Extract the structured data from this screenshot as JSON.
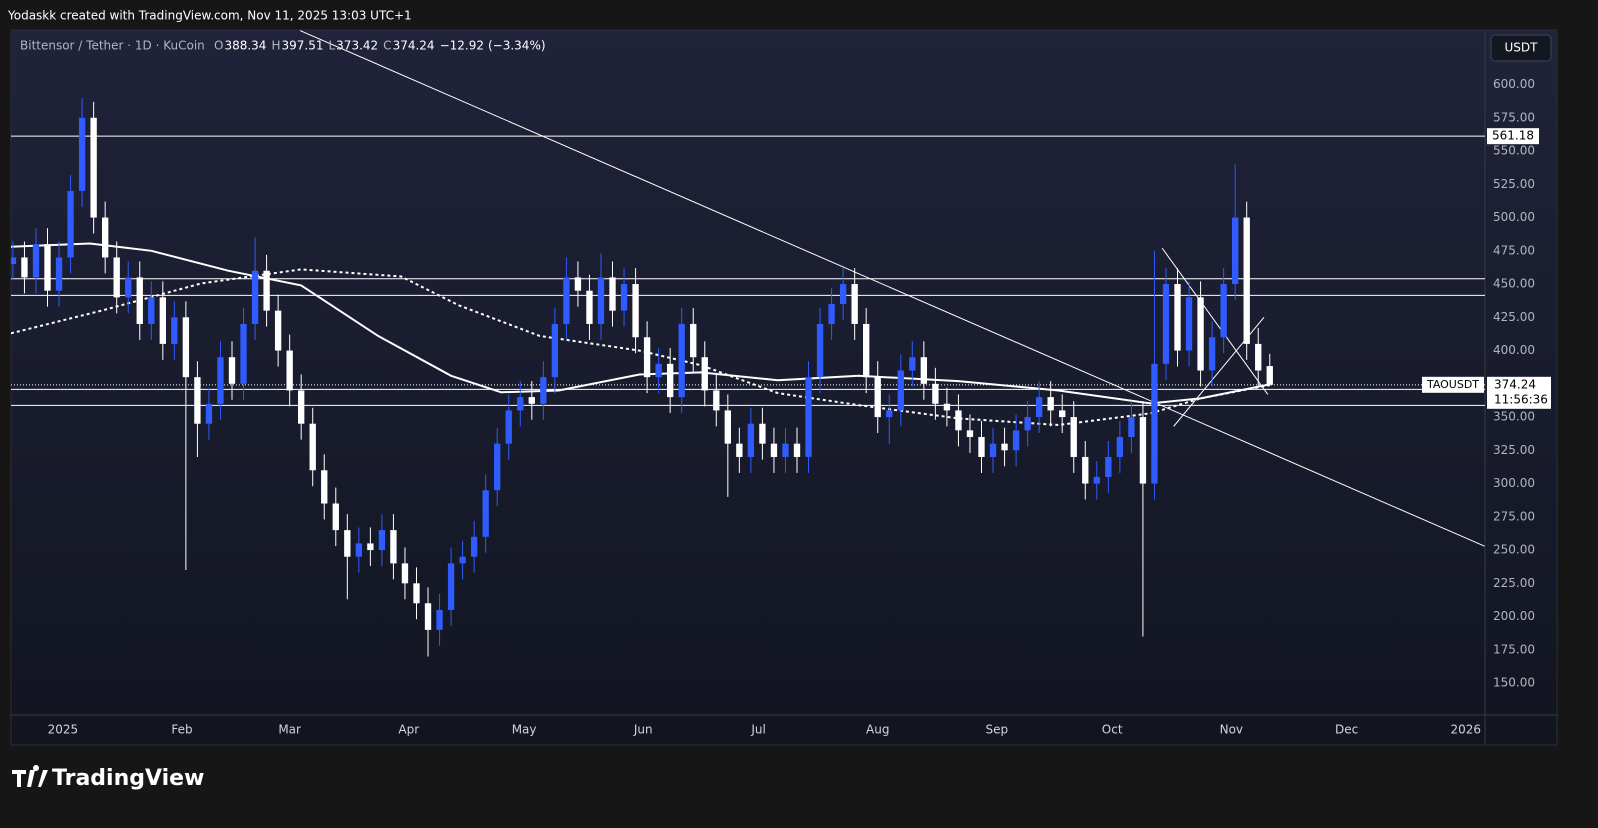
{
  "credit": "Yodaskk created with TradingView.com, Nov 11, 2025 13:03 UTC+1",
  "brand": "TradingView",
  "chart_data": {
    "type": "candlestick",
    "title": "Bittensor / Tether · 1D · KuCoin",
    "ohlc_prefixes": [
      "O",
      "H",
      "L",
      "C"
    ],
    "change": "−12.92",
    "change_pct": "(−3.34%)",
    "currency": "USDT",
    "symbol": "TAOUSDT",
    "countdown": "11:56:36",
    "up_color": "#2f5bff",
    "down_color": "#ffffff",
    "x": [
      -13,
      -10,
      -7,
      -4,
      -1,
      2,
      5,
      8,
      11,
      14,
      17,
      20,
      23,
      26,
      29,
      32,
      35,
      38,
      41,
      44,
      47,
      50,
      53,
      56,
      59,
      62,
      65,
      68,
      71,
      74,
      77,
      80,
      83,
      86,
      89,
      92,
      95,
      98,
      101,
      104,
      107,
      110,
      113,
      116,
      119,
      122,
      125,
      128,
      131,
      134,
      137,
      140,
      143,
      146,
      149,
      152,
      155,
      158,
      161,
      164,
      167,
      170,
      173,
      176,
      179,
      182,
      185,
      188,
      191,
      194,
      197,
      200,
      203,
      206,
      209,
      212,
      215,
      218,
      221,
      224,
      227,
      230,
      233,
      236,
      239,
      242,
      245,
      248,
      251,
      254,
      257,
      260,
      263,
      266,
      269,
      272,
      275,
      278,
      281,
      284,
      287,
      290,
      293,
      296,
      299,
      302,
      305,
      308,
      311,
      314
    ],
    "open": [
      465,
      470,
      455,
      480,
      445,
      470,
      520,
      575,
      500,
      470,
      440,
      455,
      420,
      440,
      405,
      425,
      380,
      345,
      360,
      395,
      375,
      420,
      460,
      430,
      400,
      370,
      345,
      310,
      285,
      265,
      245,
      255,
      250,
      265,
      240,
      225,
      210,
      190,
      205,
      240,
      245,
      260,
      295,
      330,
      355,
      365,
      360,
      380,
      420,
      455,
      445,
      420,
      455,
      430,
      450,
      410,
      380,
      390,
      365,
      420,
      395,
      370,
      355,
      330,
      320,
      345,
      330,
      320,
      330,
      320,
      380,
      420,
      435,
      450,
      420,
      380,
      350,
      355,
      385,
      395,
      375,
      360,
      355,
      340,
      335,
      320,
      330,
      325,
      340,
      350,
      365,
      355,
      350,
      320,
      300,
      305,
      320,
      335,
      350,
      300,
      390,
      450,
      400,
      440,
      385,
      410,
      450,
      500,
      405,
      388.34
    ],
    "high": [
      482,
      482,
      492,
      492,
      482,
      532,
      590,
      587,
      512,
      482,
      467,
      467,
      452,
      452,
      437,
      437,
      392,
      372,
      407,
      407,
      432,
      485,
      472,
      442,
      412,
      382,
      357,
      322,
      297,
      277,
      267,
      267,
      277,
      277,
      252,
      237,
      222,
      217,
      252,
      257,
      272,
      307,
      342,
      367,
      377,
      377,
      392,
      432,
      470,
      467,
      457,
      473,
      467,
      462,
      462,
      422,
      402,
      402,
      432,
      432,
      407,
      382,
      367,
      342,
      357,
      357,
      342,
      342,
      342,
      392,
      432,
      447,
      462,
      462,
      432,
      392,
      367,
      397,
      407,
      407,
      387,
      372,
      367,
      352,
      347,
      342,
      342,
      352,
      362,
      377,
      377,
      367,
      362,
      332,
      317,
      332,
      347,
      362,
      362,
      475,
      462,
      462,
      452,
      452,
      422,
      462,
      540,
      512,
      417,
      397.51
    ],
    "low": [
      453,
      443,
      443,
      433,
      433,
      458,
      508,
      488,
      458,
      428,
      428,
      408,
      408,
      393,
      393,
      235,
      320,
      333,
      348,
      363,
      363,
      408,
      418,
      388,
      358,
      333,
      298,
      273,
      253,
      213,
      233,
      238,
      238,
      228,
      213,
      198,
      170,
      178,
      193,
      228,
      233,
      248,
      283,
      318,
      343,
      348,
      348,
      368,
      408,
      433,
      408,
      408,
      418,
      418,
      398,
      368,
      368,
      353,
      353,
      383,
      358,
      343,
      290,
      308,
      308,
      318,
      308,
      308,
      308,
      308,
      368,
      408,
      423,
      408,
      368,
      338,
      330,
      343,
      373,
      363,
      348,
      343,
      328,
      323,
      308,
      308,
      313,
      313,
      328,
      338,
      343,
      338,
      308,
      288,
      288,
      293,
      308,
      323,
      185,
      288,
      378,
      388,
      388,
      373,
      373,
      398,
      438,
      393,
      373,
      373.42
    ],
    "close": [
      470,
      455,
      480,
      445,
      470,
      520,
      575,
      500,
      470,
      440,
      455,
      420,
      440,
      405,
      425,
      380,
      345,
      360,
      395,
      375,
      420,
      460,
      430,
      400,
      370,
      345,
      310,
      285,
      265,
      245,
      255,
      250,
      265,
      240,
      225,
      210,
      190,
      205,
      240,
      245,
      260,
      295,
      330,
      355,
      365,
      360,
      380,
      420,
      455,
      445,
      420,
      455,
      430,
      450,
      410,
      380,
      390,
      365,
      420,
      395,
      370,
      355,
      330,
      320,
      345,
      330,
      320,
      330,
      320,
      380,
      420,
      435,
      450,
      420,
      380,
      350,
      355,
      385,
      395,
      375,
      360,
      355,
      340,
      335,
      320,
      330,
      325,
      340,
      350,
      365,
      355,
      350,
      320,
      300,
      305,
      320,
      335,
      350,
      300,
      390,
      450,
      400,
      440,
      385,
      410,
      450,
      500,
      405,
      385,
      374.24
    ],
    "moving_averages": [
      {
        "style": "solid",
        "color": "#ffffff",
        "x": [
          -13.5,
          7,
          23,
          43,
          62,
          82,
          101,
          114,
          129,
          150,
          166,
          186,
          207,
          233,
          259,
          283,
          296,
          314
        ],
        "values": [
          478,
          480.5,
          475,
          460,
          449,
          411,
          381,
          368.6,
          370,
          382,
          383.6,
          377.6,
          381,
          377,
          370,
          360.3,
          364,
          374.6
        ]
      },
      {
        "style": "dotted",
        "color": "#ffffff",
        "x": [
          -13.5,
          10,
          36,
          62,
          88,
          103,
          124,
          150,
          166,
          186,
          207,
          233,
          259,
          283,
          296,
          314
        ],
        "values": [
          413,
          430,
          450.5,
          461,
          455.7,
          434,
          411,
          400,
          389,
          368,
          359,
          349,
          344,
          352.8,
          364,
          374
        ]
      }
    ],
    "horizontal_lines": [
      561.18,
      454,
      441.5,
      370.8,
      358.8
    ],
    "trend_lines": [
      {
        "x": [
          61.7,
          369.9
        ],
        "y": [
          640.6,
          252.9
        ]
      },
      {
        "x": [
          286,
          313.5
        ],
        "y": [
          477,
          367
        ]
      },
      {
        "x": [
          289,
          312.5
        ],
        "y": [
          343,
          425
        ]
      }
    ],
    "xlim": [
      -13.5,
      370
    ],
    "ylim": [
      126,
      641
    ],
    "xticks": [
      {
        "value": 0,
        "label": "2025"
      },
      {
        "value": 31,
        "label": "Feb"
      },
      {
        "value": 59,
        "label": "Mar"
      },
      {
        "value": 90,
        "label": "Apr"
      },
      {
        "value": 120,
        "label": "May"
      },
      {
        "value": 151,
        "label": "Jun"
      },
      {
        "value": 181,
        "label": "Jul"
      },
      {
        "value": 212,
        "label": "Aug"
      },
      {
        "value": 243,
        "label": "Sep"
      },
      {
        "value": 273,
        "label": "Oct"
      },
      {
        "value": 304,
        "label": "Nov"
      },
      {
        "value": 334,
        "label": "Dec"
      },
      {
        "value": 365,
        "label": "2026"
      }
    ],
    "yticks": [
      {
        "value": 150,
        "label": "150.00"
      },
      {
        "value": 175,
        "label": "175.00"
      },
      {
        "value": 200,
        "label": "200.00"
      },
      {
        "value": 225,
        "label": "225.00"
      },
      {
        "value": 250,
        "label": "250.00"
      },
      {
        "value": 275,
        "label": "275.00"
      },
      {
        "value": 300,
        "label": "300.00"
      },
      {
        "value": 325,
        "label": "325.00"
      },
      {
        "value": 350,
        "label": "350.00"
      },
      {
        "value": 375,
        "label": "375.00"
      },
      {
        "value": 400,
        "label": "400.00"
      },
      {
        "value": 425,
        "label": "425.00"
      },
      {
        "value": 450,
        "label": "450.00"
      },
      {
        "value": 475,
        "label": "475.00"
      },
      {
        "value": 500,
        "label": "500.00"
      },
      {
        "value": 525,
        "label": "525.00"
      },
      {
        "value": 550,
        "label": "550.00"
      },
      {
        "value": 575,
        "label": "575.00"
      },
      {
        "value": 600,
        "label": "600.00"
      }
    ]
  }
}
